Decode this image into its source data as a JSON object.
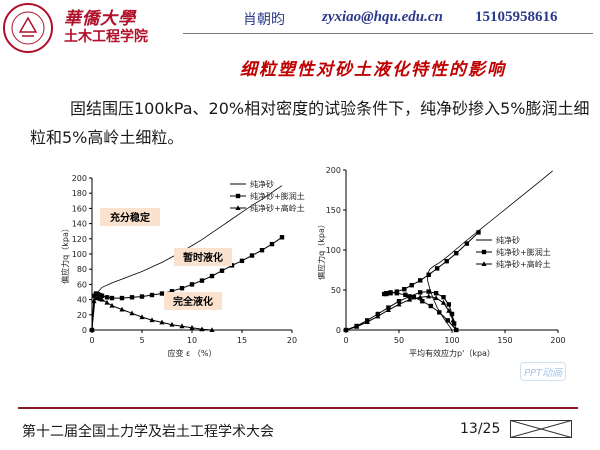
{
  "header": {
    "school_name": "華僑大學",
    "college_name": "土木工程学院",
    "logo_ring_text": "HUAQIAO UNIVERSITY",
    "author": "肖朝昀",
    "email": "zyxiao@hqu.edu.cn",
    "phone": "15105958616"
  },
  "slide": {
    "title": "细粒塑性对砂土液化特性的影响",
    "intro": "固结围压100kPa、20%相对密度的试验条件下，纯净砂掺入5%膨润土细粒和5%高岭土细粒。"
  },
  "chart_data": [
    {
      "type": "line",
      "xlabel": "应变 ε （%）",
      "ylabel": "偏应力q（kpa）",
      "xlim": [
        0,
        20
      ],
      "ylim": [
        0,
        200
      ],
      "xticks": [
        "0",
        "5",
        "10",
        "15",
        "20"
      ],
      "yticks": [
        "0",
        "20",
        "40",
        "60",
        "80",
        "100",
        "120",
        "140",
        "160",
        "180",
        "200"
      ],
      "legend": [
        "纯净砂",
        "纯净砂+膨润土",
        "纯净砂+高岭土"
      ],
      "legend_position": "top-right",
      "annotations": [
        "充分稳定",
        "暂时液化",
        "完全液化"
      ],
      "series": [
        {
          "name": "纯净砂",
          "x": [
            0,
            0.3,
            0.6,
            1,
            2,
            3,
            4,
            5,
            6,
            7,
            8,
            9,
            10,
            11,
            12,
            13,
            14,
            15,
            16,
            17,
            18,
            19
          ],
          "y": [
            0,
            40,
            50,
            56,
            62,
            67,
            72,
            77,
            83,
            89,
            96,
            103,
            111,
            119,
            128,
            137,
            146,
            155,
            164,
            172,
            181,
            190
          ]
        },
        {
          "name": "纯净砂+膨润土",
          "x": [
            0,
            0.2,
            0.4,
            0.6,
            0.8,
            1,
            1.5,
            2,
            3,
            4,
            5,
            6,
            7,
            8,
            9,
            10,
            11,
            12,
            13,
            14,
            15,
            16,
            17,
            18,
            19
          ],
          "y": [
            0,
            45,
            48,
            47,
            46,
            45,
            43,
            42,
            42,
            43,
            44,
            46,
            48,
            51,
            55,
            60,
            65,
            71,
            78,
            85,
            91,
            98,
            105,
            113,
            122
          ]
        },
        {
          "name": "纯净砂+高岭土",
          "x": [
            0,
            0.2,
            0.4,
            0.6,
            0.8,
            1,
            1.5,
            2,
            3,
            4,
            5,
            6,
            7,
            8,
            9,
            10,
            11,
            12
          ],
          "y": [
            0,
            38,
            42,
            42,
            41,
            40,
            36,
            32,
            27,
            22,
            17,
            13,
            10,
            7,
            5,
            3,
            1,
            0
          ]
        }
      ]
    },
    {
      "type": "line",
      "xlabel": "平均有效应力p'（kpa）",
      "ylabel": "偏应力q（kpa）",
      "xlim": [
        0,
        200
      ],
      "ylim": [
        0,
        200
      ],
      "xticks": [
        "0",
        "50",
        "100",
        "150",
        "200"
      ],
      "yticks": [
        "0",
        "50",
        "100",
        "150",
        "200"
      ],
      "legend": [
        "纯净砂",
        "纯净砂+膨润土",
        "纯净砂+高岭土"
      ],
      "legend_position": "right",
      "series": [
        {
          "name": "纯净砂",
          "x": [
            100,
            92,
            86,
            82,
            79,
            77,
            77,
            79,
            83,
            88,
            95,
            103,
            112,
            125,
            140,
            155,
            170,
            185,
            195
          ],
          "y": [
            0,
            15,
            28,
            40,
            52,
            62,
            70,
            76,
            80,
            84,
            91,
            100,
            110,
            124,
            140,
            156,
            172,
            188,
            199
          ]
        },
        {
          "name": "纯净砂+膨润土",
          "x": [
            0,
            10,
            20,
            30,
            40,
            50,
            60,
            70,
            78,
            85,
            92,
            97,
            100,
            102,
            104,
            96,
            88,
            80,
            72,
            64,
            56,
            48,
            42,
            38,
            36,
            38,
            42,
            48,
            55,
            62,
            70,
            78,
            86,
            95,
            104,
            114,
            125
          ],
          "y": [
            0,
            5,
            12,
            20,
            28,
            36,
            42,
            47,
            48,
            46,
            41,
            32,
            20,
            8,
            0,
            12,
            22,
            30,
            36,
            41,
            44,
            46,
            47,
            46,
            45,
            45,
            46,
            48,
            51,
            56,
            62,
            69,
            77,
            86,
            96,
            108,
            122
          ]
        },
        {
          "name": "纯净砂+高岭土",
          "x": [
            0,
            10,
            20,
            30,
            40,
            50,
            60,
            70,
            78,
            85,
            92,
            97,
            101,
            104
          ],
          "y": [
            0,
            4,
            10,
            17,
            25,
            32,
            38,
            41,
            42,
            40,
            34,
            24,
            12,
            0
          ]
        }
      ]
    }
  ],
  "footer": {
    "conference": "第十二届全国土力学及岩土工程学术大会",
    "page": "13/25"
  },
  "watermark": "PPT动画",
  "colors": {
    "brand": "#b0102a",
    "title": "#c00000",
    "header_text": "#2b3a8a",
    "footer_line": "#8b1a2a"
  }
}
